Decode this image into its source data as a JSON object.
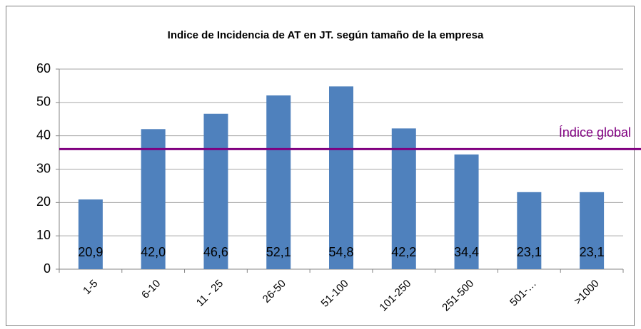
{
  "chart_data": {
    "type": "bar",
    "title": "Indice de Incidencia de AT en JT. según tamaño de la empresa",
    "categories": [
      "1-5",
      "6-10",
      "11 - 25",
      "26-50",
      "51-100",
      "101-250",
      "251-500",
      "501-…",
      ">1000"
    ],
    "values": [
      20.9,
      42.0,
      46.6,
      52.1,
      54.8,
      42.2,
      34.4,
      23.1,
      23.1
    ],
    "value_labels": [
      "20,9",
      "42,0",
      "46,6",
      "52,1",
      "54,8",
      "42,2",
      "34,4",
      "23,1",
      "23,1"
    ],
    "color": "#4f81bd",
    "ylim": [
      0,
      60
    ],
    "yticks": [
      0,
      10,
      20,
      30,
      40,
      50,
      60
    ],
    "grid": true,
    "reference_line": {
      "value": 36,
      "label": "Índice global",
      "color": "#800080"
    }
  }
}
